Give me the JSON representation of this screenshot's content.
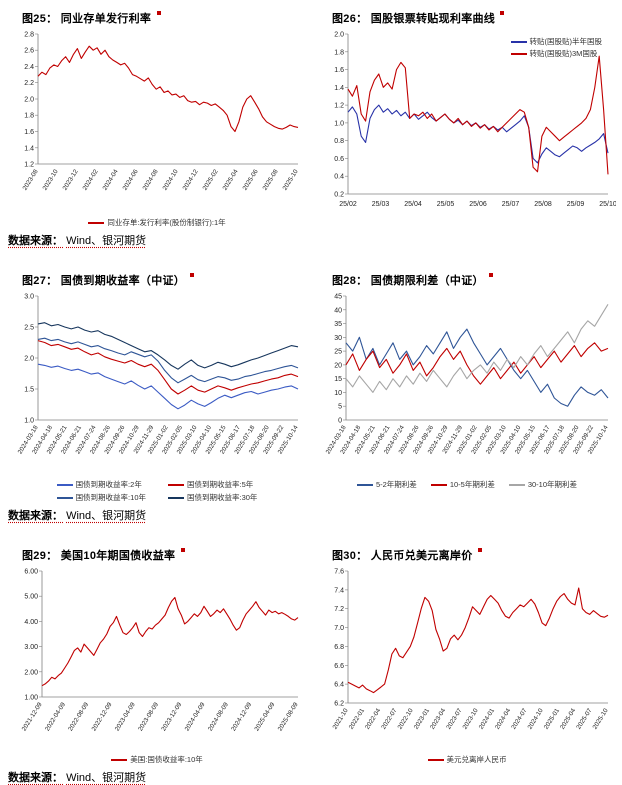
{
  "page": {
    "source_label": "数据来源：",
    "source_value": "Wind、银河期货"
  },
  "chart_data": [
    {
      "figure_label": "图25：",
      "title": "同业存单发行利率",
      "type": "line",
      "ylim": [
        1.2,
        2.8
      ],
      "ystep": 0.2,
      "ydec": 1,
      "ml": 30,
      "mb": 50,
      "xtick_rotate": true,
      "legend_pos": "bottom",
      "xticks": [
        "2023-08",
        "2023-10",
        "2023-12",
        "2024-02",
        "2024-04",
        "2024-06",
        "2024-08",
        "2024-10",
        "2024-12",
        "2025-02",
        "2025-04",
        "2025-06",
        "2025-08",
        "2025-10"
      ],
      "series": [
        {
          "name": "同业存单:发行利率(股份制银行):1年",
          "color": "#C00000",
          "values": [
            2.28,
            2.33,
            2.3,
            2.38,
            2.42,
            2.4,
            2.47,
            2.52,
            2.45,
            2.55,
            2.62,
            2.5,
            2.58,
            2.65,
            2.6,
            2.63,
            2.55,
            2.6,
            2.52,
            2.48,
            2.45,
            2.42,
            2.44,
            2.38,
            2.3,
            2.28,
            2.25,
            2.22,
            2.26,
            2.18,
            2.12,
            2.15,
            2.08,
            2.1,
            2.05,
            2.06,
            2.02,
            2.04,
            1.98,
            1.96,
            1.97,
            1.93,
            1.96,
            1.95,
            1.92,
            1.94,
            1.9,
            1.86,
            1.8,
            1.66,
            1.6,
            1.72,
            1.9,
            2.0,
            2.04,
            1.96,
            1.88,
            1.78,
            1.72,
            1.69,
            1.66,
            1.64,
            1.63,
            1.65,
            1.68,
            1.66,
            1.65
          ]
        }
      ]
    },
    {
      "figure_label": "图26：",
      "title": "国股银票转贴现利率曲线",
      "type": "line",
      "ylim": [
        0.2,
        2.0
      ],
      "ystep": 0.2,
      "ydec": 1,
      "ml": 30,
      "mb": 20,
      "xtick_rotate": false,
      "legend_pos": "tr",
      "xticks": [
        "25/02",
        "25/03",
        "25/04",
        "25/05",
        "25/06",
        "25/07",
        "25/08",
        "25/09",
        "25/10"
      ],
      "series": [
        {
          "name": "转贴(国股贴)半年国股",
          "color": "#2832A8",
          "values": [
            1.12,
            1.18,
            1.1,
            0.85,
            0.78,
            1.05,
            1.15,
            1.2,
            1.12,
            1.16,
            1.1,
            1.14,
            1.08,
            1.12,
            1.05,
            1.1,
            1.04,
            1.08,
            1.12,
            1.06,
            1.02,
            1.06,
            1.1,
            1.04,
            1.0,
            1.03,
            0.98,
            1.02,
            0.97,
            1.0,
            0.95,
            0.98,
            0.93,
            0.96,
            0.92,
            0.95,
            0.9,
            0.94,
            0.98,
            1.02,
            1.08,
            0.95,
            0.6,
            0.55,
            0.65,
            0.72,
            0.68,
            0.64,
            0.62,
            0.66,
            0.7,
            0.74,
            0.72,
            0.68,
            0.72,
            0.75,
            0.78,
            0.82,
            0.88,
            0.66
          ]
        },
        {
          "name": "转贴(国股贴)3M国股",
          "color": "#C00000",
          "values": [
            1.38,
            1.3,
            1.42,
            1.1,
            1.02,
            1.35,
            1.48,
            1.55,
            1.4,
            1.45,
            1.38,
            1.6,
            1.68,
            1.62,
            1.05,
            1.1,
            1.08,
            1.12,
            1.05,
            1.1,
            1.02,
            1.06,
            1.1,
            1.04,
            1.0,
            1.05,
            0.98,
            1.02,
            0.96,
            1.0,
            0.94,
            0.98,
            0.92,
            0.96,
            0.9,
            0.95,
            1.0,
            1.05,
            1.1,
            1.15,
            1.12,
            0.95,
            0.5,
            0.45,
            0.85,
            0.95,
            0.9,
            0.85,
            0.8,
            0.84,
            0.88,
            0.92,
            0.96,
            1.0,
            1.05,
            1.15,
            1.4,
            1.75,
            1.15,
            0.42
          ]
        }
      ]
    },
    {
      "figure_label": "图27：",
      "title": "国债到期收益率（中证）",
      "type": "line",
      "ylim": [
        1.0,
        3.0
      ],
      "ystep": 0.5,
      "ydec": 1,
      "ml": 30,
      "mb": 56,
      "xtick_rotate": true,
      "legend_pos": "bottom",
      "legend_cols": 2,
      "xticks": [
        "2024-03-18",
        "2024-04-18",
        "2024-05-21",
        "2024-06-21",
        "2024-07-24",
        "2024-08-26",
        "2024-09-26",
        "2024-10-29",
        "2024-11-29",
        "2025-01-02",
        "2025-02-05",
        "2025-03-10",
        "2025-04-10",
        "2025-05-15",
        "2025-06-17",
        "2025-07-18",
        "2025-08-20",
        "2025-09-22",
        "2025-10-14"
      ],
      "series": [
        {
          "name": "国债到期收益率:2年",
          "color": "#3B5BC4",
          "values": [
            1.9,
            1.88,
            1.85,
            1.87,
            1.83,
            1.8,
            1.82,
            1.78,
            1.74,
            1.76,
            1.7,
            1.66,
            1.62,
            1.58,
            1.63,
            1.56,
            1.5,
            1.55,
            1.45,
            1.35,
            1.25,
            1.18,
            1.24,
            1.32,
            1.26,
            1.22,
            1.28,
            1.35,
            1.4,
            1.36,
            1.4,
            1.44,
            1.46,
            1.42,
            1.45,
            1.48,
            1.5,
            1.53,
            1.55,
            1.5
          ]
        },
        {
          "name": "国债到期收益率:5年",
          "color": "#C00000",
          "values": [
            2.28,
            2.25,
            2.2,
            2.22,
            2.18,
            2.14,
            2.16,
            2.1,
            2.05,
            2.08,
            2.02,
            1.98,
            1.95,
            1.92,
            1.96,
            1.9,
            1.86,
            1.9,
            1.8,
            1.65,
            1.5,
            1.42,
            1.48,
            1.55,
            1.48,
            1.45,
            1.5,
            1.55,
            1.52,
            1.48,
            1.52,
            1.55,
            1.58,
            1.6,
            1.63,
            1.66,
            1.68,
            1.72,
            1.74,
            1.7
          ]
        },
        {
          "name": "国债到期收益率:10年",
          "color": "#2F5597",
          "values": [
            2.3,
            2.32,
            2.28,
            2.3,
            2.26,
            2.23,
            2.26,
            2.22,
            2.18,
            2.2,
            2.15,
            2.12,
            2.08,
            2.05,
            2.1,
            2.06,
            2.02,
            2.05,
            1.95,
            1.8,
            1.68,
            1.6,
            1.66,
            1.72,
            1.65,
            1.62,
            1.66,
            1.7,
            1.68,
            1.64,
            1.66,
            1.7,
            1.72,
            1.75,
            1.78,
            1.8,
            1.83,
            1.86,
            1.88,
            1.84
          ]
        },
        {
          "name": "国债到期收益率:30年",
          "color": "#17365D",
          "values": [
            2.55,
            2.57,
            2.52,
            2.54,
            2.5,
            2.47,
            2.5,
            2.45,
            2.42,
            2.44,
            2.38,
            2.35,
            2.3,
            2.25,
            2.2,
            2.15,
            2.1,
            2.12,
            2.05,
            1.97,
            1.88,
            1.82,
            1.9,
            1.97,
            1.88,
            1.84,
            1.88,
            1.93,
            1.9,
            1.86,
            1.89,
            1.93,
            1.97,
            2.0,
            2.04,
            2.08,
            2.12,
            2.16,
            2.2,
            2.18
          ]
        }
      ]
    },
    {
      "figure_label": "图28：",
      "title": "国债期限利差（中证）",
      "type": "line",
      "ylim": [
        0,
        45
      ],
      "ystep": 5,
      "ydec": 0,
      "ml": 28,
      "mb": 56,
      "xtick_rotate": true,
      "legend_pos": "bottom",
      "xticks": [
        "2024-03-18",
        "2024-04-18",
        "2024-05-21",
        "2024-06-21",
        "2024-07-24",
        "2024-08-26",
        "2024-09-26",
        "2024-10-29",
        "2024-11-29",
        "2025-01-02",
        "2025-02-05",
        "2025-03-10",
        "2025-04-10",
        "2025-05-15",
        "2025-06-17",
        "2025-07-18",
        "2025-08-20",
        "2025-09-22",
        "2025-10-14"
      ],
      "series": [
        {
          "name": "5-2年期利差",
          "color": "#2F5597",
          "values": [
            28,
            25,
            30,
            22,
            26,
            20,
            24,
            28,
            22,
            25,
            20,
            23,
            27,
            24,
            28,
            32,
            26,
            30,
            33,
            28,
            24,
            20,
            23,
            26,
            22,
            18,
            15,
            18,
            14,
            10,
            13,
            8,
            6,
            5,
            9,
            12,
            10,
            9,
            11,
            8
          ]
        },
        {
          "name": "10-5年期利差",
          "color": "#C00000",
          "values": [
            20,
            24,
            18,
            22,
            25,
            19,
            22,
            17,
            20,
            24,
            18,
            21,
            16,
            19,
            23,
            26,
            22,
            25,
            20,
            16,
            13,
            16,
            19,
            15,
            18,
            21,
            17,
            20,
            23,
            19,
            22,
            25,
            21,
            24,
            27,
            23,
            26,
            28,
            25,
            26
          ]
        },
        {
          "name": "30-10年期利差",
          "color": "#A6A6A6",
          "values": [
            15,
            12,
            16,
            13,
            10,
            14,
            11,
            15,
            12,
            16,
            13,
            17,
            14,
            18,
            15,
            12,
            16,
            19,
            15,
            18,
            20,
            17,
            21,
            18,
            22,
            19,
            23,
            20,
            24,
            27,
            23,
            26,
            29,
            32,
            28,
            33,
            36,
            34,
            38,
            42
          ]
        }
      ]
    },
    {
      "figure_label": "图29：",
      "title": "美国10年期国债收益率",
      "type": "line",
      "ylim": [
        1.0,
        6.0
      ],
      "ystep": 1.0,
      "ydec": 2,
      "ml": 34,
      "mb": 54,
      "xtick_rotate": true,
      "legend_pos": "bottom",
      "xticks": [
        "2021-12-09",
        "2022-04-09",
        "2022-08-09",
        "2022-12-09",
        "2023-04-09",
        "2023-08-09",
        "2023-12-09",
        "2024-04-09",
        "2024-08-09",
        "2024-12-09",
        "2025-04-09",
        "2025-08-09"
      ],
      "series": [
        {
          "name": "美国:国债收益率:10年",
          "color": "#C00000",
          "values": [
            1.45,
            1.52,
            1.63,
            1.78,
            1.72,
            1.85,
            1.95,
            2.15,
            2.35,
            2.6,
            2.85,
            2.95,
            2.78,
            3.1,
            2.95,
            2.8,
            2.65,
            2.9,
            3.15,
            3.3,
            3.5,
            3.8,
            3.95,
            4.2,
            3.85,
            3.55,
            3.48,
            3.6,
            3.75,
            3.95,
            3.55,
            3.4,
            3.6,
            3.75,
            3.7,
            3.85,
            3.95,
            4.1,
            4.25,
            4.55,
            4.8,
            4.95,
            4.5,
            4.25,
            3.9,
            4.0,
            4.15,
            4.3,
            4.2,
            4.35,
            4.6,
            4.4,
            4.2,
            4.3,
            4.45,
            4.35,
            4.5,
            4.3,
            4.1,
            3.85,
            3.65,
            3.75,
            4.05,
            4.3,
            4.45,
            4.6,
            4.78,
            4.55,
            4.4,
            4.25,
            4.45,
            4.35,
            4.4,
            4.3,
            4.35,
            4.28,
            4.2,
            4.1,
            4.05,
            4.15
          ]
        }
      ]
    },
    {
      "figure_label": "图30：",
      "title": "人民币兑美元离岸价",
      "type": "line",
      "ylim": [
        6.2,
        7.6
      ],
      "ystep": 0.2,
      "ydec": 1,
      "ml": 30,
      "mb": 48,
      "xtick_rotate": true,
      "legend_pos": "bottom",
      "xticks": [
        "2021-10",
        "2022-01",
        "2022-04",
        "2022-07",
        "2022-10",
        "2023-01",
        "2023-04",
        "2023-07",
        "2023-10",
        "2024-01",
        "2024-04",
        "2024-07",
        "2024-10",
        "2025-01",
        "2025-04",
        "2025-07",
        "2025-10"
      ],
      "series": [
        {
          "name": "美元兑离岸人民币",
          "color": "#C00000",
          "values": [
            6.42,
            6.4,
            6.38,
            6.36,
            6.39,
            6.35,
            6.33,
            6.31,
            6.34,
            6.37,
            6.4,
            6.55,
            6.72,
            6.78,
            6.7,
            6.68,
            6.74,
            6.8,
            6.9,
            7.05,
            7.2,
            7.32,
            7.28,
            7.18,
            6.98,
            6.88,
            6.75,
            6.78,
            6.88,
            6.92,
            6.87,
            6.92,
            7.0,
            7.1,
            7.22,
            7.18,
            7.14,
            7.22,
            7.3,
            7.34,
            7.3,
            7.26,
            7.18,
            7.12,
            7.1,
            7.16,
            7.2,
            7.24,
            7.22,
            7.26,
            7.3,
            7.25,
            7.16,
            7.05,
            7.02,
            7.1,
            7.2,
            7.28,
            7.33,
            7.36,
            7.3,
            7.26,
            7.24,
            7.42,
            7.2,
            7.16,
            7.14,
            7.18,
            7.15,
            7.12,
            7.11,
            7.13
          ]
        }
      ]
    }
  ]
}
